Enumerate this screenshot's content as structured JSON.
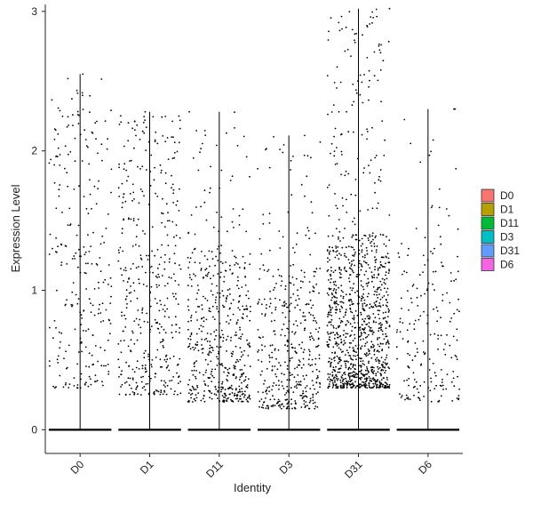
{
  "chart_data": {
    "type": "violin-jitter",
    "xlabel": "Identity",
    "ylabel": "Expression Level",
    "ylim": [
      -0.17,
      3.05
    ],
    "yticks": [
      0,
      1,
      2,
      3
    ],
    "categories": [
      "D0",
      "D1",
      "D11",
      "D3",
      "D31",
      "D6"
    ],
    "legend": {
      "position": "right",
      "items": [
        {
          "label": "D0",
          "color": "#F8766D"
        },
        {
          "label": "D1",
          "color": "#B79F00"
        },
        {
          "label": "D11",
          "color": "#00BA38"
        },
        {
          "label": "D3",
          "color": "#00BFC4"
        },
        {
          "label": "D31",
          "color": "#619CFF"
        },
        {
          "label": "D6",
          "color": "#F564E3"
        }
      ]
    },
    "series": [
      {
        "category": "D0",
        "max": 2.55,
        "point_count": 260,
        "zero_count": 400,
        "dense_low": 0.3,
        "dense_high": 2.45
      },
      {
        "category": "D1",
        "max": 2.28,
        "point_count": 420,
        "zero_count": 500,
        "dense_low": 0.25,
        "dense_high": 2.25
      },
      {
        "category": "D11",
        "max": 2.28,
        "point_count": 520,
        "zero_count": 600,
        "dense_low": 0.2,
        "dense_high": 1.3
      },
      {
        "category": "D3",
        "max": 2.11,
        "point_count": 420,
        "zero_count": 600,
        "dense_low": 0.15,
        "dense_high": 1.2
      },
      {
        "category": "D31",
        "max": 3.02,
        "point_count": 1100,
        "zero_count": 700,
        "dense_low": 0.3,
        "dense_high": 1.4
      },
      {
        "category": "D6",
        "max": 2.3,
        "point_count": 200,
        "zero_count": 400,
        "dense_low": 0.2,
        "dense_high": 1.3
      }
    ],
    "grid": false,
    "point_color": "#000000"
  }
}
